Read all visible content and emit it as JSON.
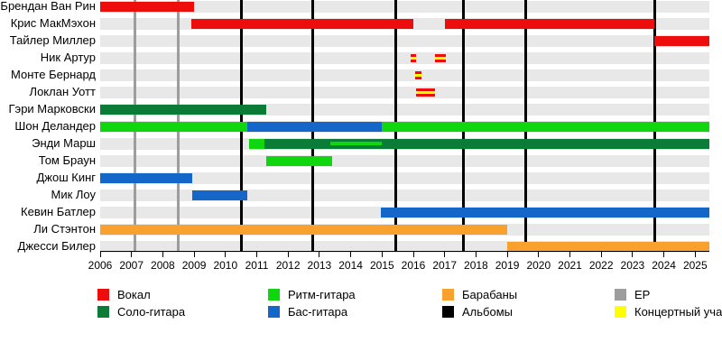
{
  "chart_data": {
    "type": "timeline",
    "title": "",
    "x_axis": {
      "start_year": 2006,
      "end_year": 2025.5,
      "tick_labels": [
        "2006",
        "2007",
        "2008",
        "2009",
        "2010",
        "2011",
        "2012",
        "2013",
        "2014",
        "2015",
        "2016",
        "2017",
        "2018",
        "2019",
        "2020",
        "2021",
        "2022",
        "2023",
        "2024",
        "2025"
      ]
    },
    "members": [
      {
        "name": "Брендан Ван Рин",
        "segments": [
          {
            "role": "vocals",
            "start": 2006.0,
            "end": 2009.0
          }
        ]
      },
      {
        "name": "Крис МакМэхон",
        "segments": [
          {
            "role": "vocals",
            "start": 2008.9,
            "end": 2016.0
          },
          {
            "role": "vocals",
            "start": 2017.0,
            "end": 2023.7
          }
        ]
      },
      {
        "name": "Тайлер Миллер",
        "segments": [
          {
            "role": "vocals",
            "start": 2023.7,
            "end": 2025.5
          }
        ]
      },
      {
        "name": "Ник Артур",
        "segments": [
          {
            "role": "touring_vocals",
            "start": 2015.9,
            "end": 2016.1
          },
          {
            "role": "touring_vocals",
            "start": 2016.7,
            "end": 2017.05
          }
        ]
      },
      {
        "name": "Монте Бернард",
        "segments": [
          {
            "role": "touring_vocals",
            "start": 2016.05,
            "end": 2016.25
          }
        ]
      },
      {
        "name": "Локлан Уотт",
        "segments": [
          {
            "role": "touring_vocals",
            "start": 2016.1,
            "end": 2016.7
          }
        ]
      },
      {
        "name": "Гэри Марковски",
        "segments": [
          {
            "role": "solo_guitar",
            "start": 2006.0,
            "end": 2011.3
          }
        ]
      },
      {
        "name": "Шон Деландер",
        "segments": [
          {
            "role": "rhythm_guitar",
            "start": 2006.0,
            "end": 2010.7
          },
          {
            "role": "bass",
            "start": 2010.7,
            "end": 2015.0
          },
          {
            "role": "rhythm_guitar",
            "start": 2015.0,
            "end": 2025.5
          }
        ]
      },
      {
        "name": "Энди Марш",
        "segments": [
          {
            "role": "rhythm_guitar",
            "start": 2010.75,
            "end": 2011.25
          },
          {
            "role": "solo_guitar",
            "start": 2011.25,
            "end": 2025.5
          },
          {
            "role": "rhythm_guitar_secondary",
            "start": 2013.35,
            "end": 2015.0
          }
        ]
      },
      {
        "name": "Том Браун",
        "segments": [
          {
            "role": "rhythm_guitar",
            "start": 2011.3,
            "end": 2013.4
          }
        ]
      },
      {
        "name": "Джош Кинг",
        "segments": [
          {
            "role": "bass",
            "start": 2006.0,
            "end": 2008.95
          }
        ]
      },
      {
        "name": "Мик Лоу",
        "segments": [
          {
            "role": "bass",
            "start": 2008.95,
            "end": 2010.7
          }
        ]
      },
      {
        "name": "Кевин Батлер",
        "segments": [
          {
            "role": "bass",
            "start": 2014.95,
            "end": 2025.5
          }
        ]
      },
      {
        "name": "Ли Стэнтон",
        "segments": [
          {
            "role": "drums",
            "start": 2006.0,
            "end": 2019.0
          }
        ]
      },
      {
        "name": "Джесси Билер",
        "segments": [
          {
            "role": "drums",
            "start": 2019.0,
            "end": 2025.5
          }
        ]
      }
    ],
    "events": {
      "albums_years": [
        2010.5,
        2012.8,
        2015.43,
        2017.6,
        2019.6,
        2023.7
      ],
      "ep_years": [
        2007.1,
        2008.5
      ]
    },
    "legend": [
      {
        "label": "Вокал",
        "color_key": "vocals"
      },
      {
        "label": "Соло-гитара",
        "color_key": "solo_guitar"
      },
      {
        "label": "Ритм-гитара",
        "color_key": "rhythm_guitar"
      },
      {
        "label": "Бас-гитара",
        "color_key": "bass"
      },
      {
        "label": "Барабаны",
        "color_key": "drums"
      },
      {
        "label": "Альбомы",
        "color_key": "albums"
      },
      {
        "label": "EP",
        "color_key": "ep"
      },
      {
        "label": "Концертный участник",
        "color_key": "touring"
      }
    ],
    "colors": {
      "vocals": "#ee0d0d",
      "solo_guitar": "#0b7c38",
      "rhythm_guitar": "#0fd60f",
      "bass": "#1467c8",
      "drums": "#f8a12f",
      "albums": "#000000",
      "ep": "#9d9d9d",
      "touring": "#ffff00",
      "row_band": "#e8e8e8"
    }
  }
}
